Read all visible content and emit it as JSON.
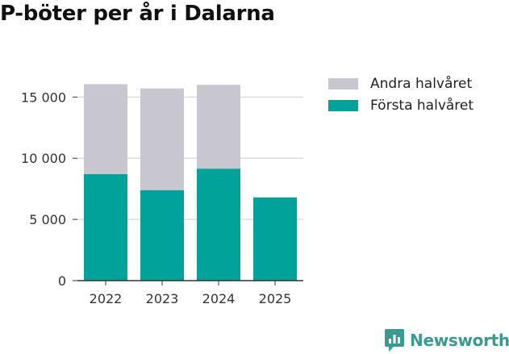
{
  "title": "P-böter per år i Dalarna",
  "brand": {
    "name": "Newsworthy",
    "icon": "newsworthy-logo-icon",
    "color": "#3a9a8f"
  },
  "colors": {
    "first_half": "#00a29a",
    "second_half": "#c8c7d0",
    "grid": "#dddddd",
    "axis": "#333333"
  },
  "chart_data": {
    "type": "bar",
    "stacked": true,
    "title": "P-böter per år i Dalarna",
    "xlabel": "",
    "ylabel": "",
    "categories": [
      "2022",
      "2023",
      "2024",
      "2025"
    ],
    "series": [
      {
        "name": "Första halvåret",
        "values": [
          8700,
          7400,
          9150,
          6800
        ]
      },
      {
        "name": "Andra halvåret",
        "values": [
          7350,
          8300,
          6850,
          0
        ]
      }
    ],
    "ylim": [
      0,
      17000
    ],
    "yticks": [
      0,
      5000,
      10000,
      15000
    ],
    "ytick_labels": [
      "0",
      "5 000",
      "10 000",
      "15 000"
    ],
    "grid": true,
    "legend_position": "right"
  },
  "legend": [
    {
      "label": "Andra halvåret",
      "color": "#c8c7d0"
    },
    {
      "label": "Första halvåret",
      "color": "#00a29a"
    }
  ]
}
